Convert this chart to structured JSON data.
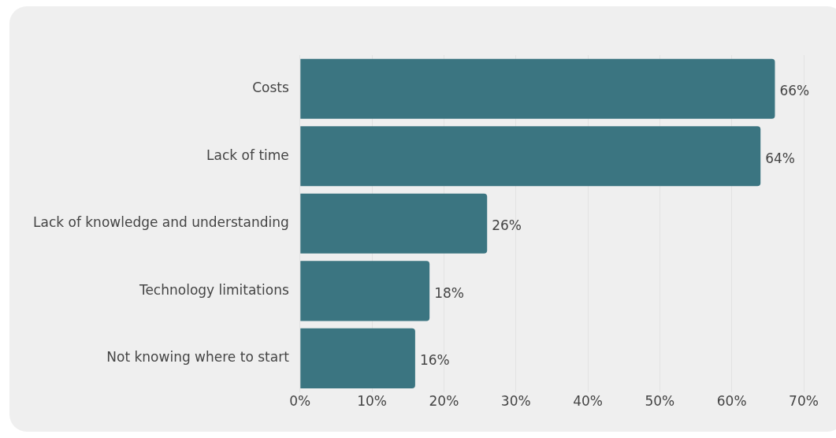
{
  "chart_data": {
    "type": "bar",
    "orientation": "horizontal",
    "categories": [
      "Costs",
      "Lack of time",
      "Lack of knowledge and understanding",
      "Technology limitations",
      "Not knowing where to start"
    ],
    "values": [
      66,
      64,
      26,
      18,
      16
    ],
    "color": "#3b7581",
    "value_labels": [
      "66%",
      "64%",
      "26%",
      "18%",
      "16%"
    ],
    "xlim": [
      0,
      70
    ],
    "xticks": [
      {
        "value": 0,
        "label": "0%"
      },
      {
        "value": 10,
        "label": "10%"
      },
      {
        "value": 20,
        "label": "20%"
      },
      {
        "value": 30,
        "label": "30%"
      },
      {
        "value": 40,
        "label": "40%"
      },
      {
        "value": 50,
        "label": "50%"
      },
      {
        "value": 60,
        "label": "60%"
      },
      {
        "value": 70,
        "label": "70%"
      }
    ],
    "grid": "x",
    "legend": false
  }
}
